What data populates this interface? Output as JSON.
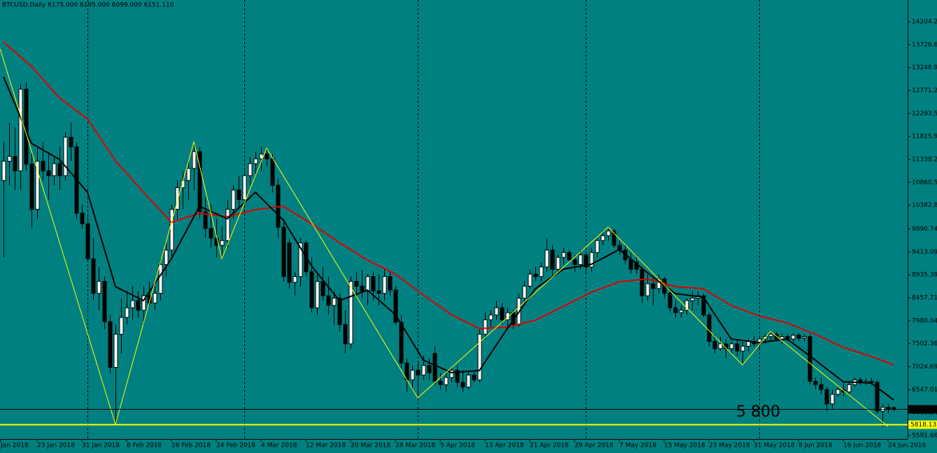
{
  "chart_data": {
    "type": "candlestick",
    "title": "BTCUSD,Daily  6175.000 6195.000 6099.000 6151.110",
    "background": "#008080",
    "xlim": [
      -0.625,
      161.5
    ],
    "ylim": [
      5519.5,
      14655
    ],
    "yticks": [
      14204.2,
      13726.6,
      13248.9,
      12771.2,
      12293.5,
      11815.9,
      11338.2,
      10860.5,
      10382.8,
      9890.74,
      9413.09,
      8935.39,
      8457.71,
      7980.04,
      7502.36,
      7024.69,
      6547.01,
      6069.34,
      5591.66
    ],
    "xticks": [
      {
        "value": -0.5,
        "label": "Jan 2018"
      },
      {
        "value": 6,
        "label": "23 Jan 2018"
      },
      {
        "value": 14,
        "label": "31 Jan 2018"
      },
      {
        "value": 22,
        "label": "8 Feb 2018"
      },
      {
        "value": 30,
        "label": "16 Feb 2018"
      },
      {
        "value": 38,
        "label": "24 Feb 2018"
      },
      {
        "value": 46,
        "label": "4 Mar 2018"
      },
      {
        "value": 54,
        "label": "12 Mar 2018"
      },
      {
        "value": 62,
        "label": "20 Mar 2018"
      },
      {
        "value": 70,
        "label": "28 Mar 2018"
      },
      {
        "value": 78,
        "label": "5 Apr 2018"
      },
      {
        "value": 86,
        "label": "13 Apr 2018"
      },
      {
        "value": 94,
        "label": "21 Apr 2018"
      },
      {
        "value": 102,
        "label": "29 Apr 2018"
      },
      {
        "value": 110,
        "label": "7 May 2018"
      },
      {
        "value": 118,
        "label": "15 May 2018"
      },
      {
        "value": 126,
        "label": "23 May 2018"
      },
      {
        "value": 134,
        "label": "31 May 2018"
      },
      {
        "value": 142,
        "label": "8 Jun 2018"
      },
      {
        "value": 150,
        "label": "16 Jun 2018"
      },
      {
        "value": 158,
        "label": "24 Jun 2018"
      }
    ],
    "separators": [
      15,
      43,
      74,
      104,
      135
    ],
    "bull_color": "#ffffff",
    "bear_color": "#000000",
    "ohlc": [
      [
        10900,
        11700,
        9300,
        11300
      ],
      [
        11300,
        12100,
        10800,
        11400
      ],
      [
        11400,
        12000,
        10700,
        11100
      ],
      [
        11100,
        12900,
        10700,
        12800
      ],
      [
        12800,
        12950,
        11100,
        11240
      ],
      [
        11240,
        11500,
        9900,
        10300
      ],
      [
        10300,
        11600,
        10100,
        11300
      ],
      [
        11300,
        11700,
        10900,
        11100
      ],
      [
        11100,
        11500,
        10500,
        11000
      ],
      [
        11000,
        11400,
        10800,
        11250
      ],
      [
        11250,
        11600,
        10700,
        11000
      ],
      [
        11000,
        11900,
        10900,
        11800
      ],
      [
        11800,
        12100,
        11300,
        11600
      ],
      [
        11600,
        11700,
        10100,
        10220
      ],
      [
        10220,
        10400,
        9900,
        10000
      ],
      [
        10000,
        10150,
        9200,
        9270
      ],
      [
        9270,
        9700,
        8400,
        8550
      ],
      [
        8550,
        9100,
        8200,
        8800
      ],
      [
        8800,
        8900,
        7800,
        7960
      ],
      [
        7960,
        8100,
        6900,
        7010
      ],
      [
        7010,
        7900,
        5824,
        7700
      ],
      [
        7700,
        8450,
        7300,
        8050
      ],
      [
        8050,
        8600,
        7900,
        8250
      ],
      [
        8250,
        8700,
        8000,
        8400
      ],
      [
        8400,
        8600,
        8050,
        8200
      ],
      [
        8200,
        8700,
        7900,
        8500
      ],
      [
        8500,
        8800,
        8300,
        8350
      ],
      [
        8350,
        8700,
        8200,
        8550
      ],
      [
        8550,
        9250,
        8400,
        9150
      ],
      [
        9150,
        9600,
        8900,
        9450
      ],
      [
        9450,
        10400,
        9300,
        10300
      ],
      [
        10300,
        10900,
        10100,
        10750
      ],
      [
        10750,
        11100,
        10300,
        10900
      ],
      [
        10900,
        11300,
        10500,
        11150
      ],
      [
        11150,
        11700,
        10700,
        11500
      ],
      [
        11500,
        11600,
        10100,
        10250
      ],
      [
        10250,
        10550,
        9700,
        9900
      ],
      [
        9900,
        10400,
        9500,
        9700
      ],
      [
        9700,
        10100,
        9300,
        9550
      ],
      [
        9550,
        9950,
        9273,
        9650
      ],
      [
        9650,
        10500,
        9500,
        10300
      ],
      [
        10300,
        10800,
        10100,
        10700
      ],
      [
        10700,
        11000,
        10300,
        10500
      ],
      [
        10500,
        11100,
        10400,
        11000
      ],
      [
        11000,
        11400,
        10800,
        11250
      ],
      [
        11250,
        11500,
        11000,
        11350
      ],
      [
        11350,
        11600,
        11100,
        11450
      ],
      [
        11450,
        11571,
        11200,
        11350
      ],
      [
        11350,
        11450,
        10650,
        10800
      ],
      [
        10800,
        10950,
        9700,
        9927
      ],
      [
        9927,
        10100,
        8800,
        8900
      ],
      [
        9600,
        9700,
        8650,
        8780
      ],
      [
        8780,
        9000,
        8500,
        8900
      ],
      [
        8900,
        9700,
        8700,
        9600
      ],
      [
        9600,
        9650,
        8900,
        9000
      ],
      [
        9000,
        9300,
        8150,
        8250
      ],
      [
        8250,
        9000,
        8100,
        8800
      ],
      [
        8800,
        9100,
        8400,
        8500
      ],
      [
        8500,
        8900,
        8100,
        8300
      ],
      [
        8300,
        8600,
        7900,
        8450
      ],
      [
        8450,
        8550,
        7750,
        7900
      ],
      [
        7900,
        8200,
        7300,
        7500
      ],
      [
        7500,
        8900,
        7400,
        8800
      ],
      [
        8800,
        9000,
        8500,
        8700
      ],
      [
        8700,
        9050,
        8450,
        8600
      ],
      [
        8600,
        8950,
        8300,
        8900
      ],
      [
        8900,
        9000,
        8400,
        8600
      ],
      [
        8600,
        8950,
        8300,
        8550
      ],
      [
        8550,
        9050,
        8400,
        8900
      ],
      [
        8900,
        9000,
        8500,
        8620
      ],
      [
        8620,
        8700,
        7900,
        7950
      ],
      [
        7950,
        8100,
        7000,
        7100
      ],
      [
        7100,
        7200,
        6500,
        6750
      ],
      [
        6750,
        7050,
        6550,
        6950
      ],
      [
        6950,
        7100,
        6430,
        6850
      ],
      [
        6850,
        7250,
        6750,
        7050
      ],
      [
        7050,
        7200,
        6750,
        6900
      ],
      [
        7300,
        7450,
        6650,
        6720
      ],
      [
        6720,
        6900,
        6550,
        6650
      ],
      [
        6650,
        6900,
        6500,
        6800
      ],
      [
        6800,
        7000,
        6700,
        6950
      ],
      [
        6950,
        7050,
        6600,
        6700
      ],
      [
        6700,
        6950,
        6500,
        6600
      ],
      [
        6600,
        6950,
        6550,
        6850
      ],
      [
        6850,
        6950,
        6700,
        6750
      ],
      [
        6750,
        7800,
        6700,
        7700
      ],
      [
        7700,
        8150,
        7600,
        8000
      ],
      [
        8000,
        8200,
        7850,
        8100
      ],
      [
        8100,
        8400,
        8000,
        8250
      ],
      [
        8250,
        8350,
        7900,
        8000
      ],
      [
        8000,
        8250,
        7850,
        8150
      ],
      [
        8150,
        8200,
        7800,
        7900
      ],
      [
        7900,
        8550,
        7850,
        8450
      ],
      [
        8450,
        8800,
        8300,
        8700
      ],
      [
        8700,
        9050,
        8650,
        8950
      ],
      [
        8950,
        9100,
        8800,
        8900
      ],
      [
        8900,
        9200,
        8800,
        9100
      ],
      [
        9100,
        9700,
        9000,
        9450
      ],
      [
        9450,
        9550,
        8900,
        9050
      ],
      [
        9050,
        9350,
        8950,
        9300
      ],
      [
        9300,
        9500,
        9150,
        9400
      ],
      [
        9400,
        9450,
        9200,
        9250
      ],
      [
        9250,
        9350,
        9000,
        9150
      ],
      [
        9150,
        9450,
        9050,
        9350
      ],
      [
        9350,
        9400,
        8950,
        9100
      ],
      [
        9100,
        9500,
        9000,
        9400
      ],
      [
        9400,
        9700,
        9300,
        9650
      ],
      [
        9650,
        9850,
        9550,
        9750
      ],
      [
        9750,
        9927,
        9650,
        9850
      ],
      [
        9850,
        9900,
        9500,
        9550
      ],
      [
        9550,
        9650,
        9350,
        9450
      ],
      [
        9450,
        9550,
        9150,
        9250
      ],
      [
        9250,
        9400,
        8950,
        9050
      ],
      [
        9200,
        9350,
        8950,
        9050
      ],
      [
        9050,
        9100,
        8350,
        8500
      ],
      [
        8500,
        8950,
        8400,
        8750
      ],
      [
        8750,
        8900,
        8300,
        8650
      ],
      [
        8650,
        8950,
        8550,
        8850
      ],
      [
        8850,
        8900,
        8450,
        8550
      ],
      [
        8550,
        8650,
        8150,
        8250
      ],
      [
        8250,
        8400,
        8050,
        8150
      ],
      [
        8150,
        8300,
        8050,
        8200
      ],
      [
        8200,
        8450,
        8100,
        8400
      ],
      [
        8400,
        8600,
        8200,
        8450
      ],
      [
        8450,
        8600,
        8300,
        8500
      ],
      [
        8500,
        8550,
        8050,
        8100
      ],
      [
        8100,
        8150,
        7450,
        7550
      ],
      [
        7550,
        7700,
        7300,
        7400
      ],
      [
        7400,
        7650,
        7350,
        7500
      ],
      [
        7500,
        7600,
        7200,
        7400
      ],
      [
        7400,
        7550,
        7300,
        7500
      ],
      [
        7500,
        7600,
        7250,
        7350
      ],
      [
        7350,
        7550,
        7061,
        7450
      ],
      [
        7450,
        7600,
        7350,
        7550
      ],
      [
        7550,
        7650,
        7450,
        7500
      ],
      [
        7500,
        7650,
        7400,
        7600
      ],
      [
        7600,
        7700,
        7500,
        7650
      ],
      [
        7650,
        7759,
        7550,
        7700
      ],
      [
        7700,
        7750,
        7550,
        7600
      ],
      [
        7600,
        7720,
        7500,
        7650
      ],
      [
        7650,
        7700,
        7550,
        7600
      ],
      [
        7600,
        7720,
        7550,
        7680
      ],
      [
        7680,
        7730,
        7550,
        7620
      ],
      [
        7620,
        7700,
        7550,
        7650
      ],
      [
        7650,
        7700,
        6650,
        6720
      ],
      [
        6720,
        6800,
        6550,
        6650
      ],
      [
        6650,
        6800,
        6450,
        6550
      ],
      [
        6550,
        6600,
        6100,
        6250
      ],
      [
        6250,
        6550,
        6150,
        6450
      ],
      [
        6450,
        6600,
        6400,
        6550
      ],
      [
        6550,
        6700,
        6400,
        6500
      ],
      [
        6500,
        6700,
        6450,
        6650
      ],
      [
        6650,
        6800,
        6600,
        6750
      ],
      [
        6750,
        6800,
        6650,
        6700
      ],
      [
        6700,
        6780,
        6650,
        6720
      ],
      [
        6720,
        6800,
        6650,
        6700
      ],
      [
        6700,
        6750,
        6050,
        6100
      ],
      [
        6100,
        6250,
        5781,
        6180
      ],
      [
        6180,
        6250,
        6050,
        6150
      ],
      [
        6175,
        6195,
        6099,
        6151.11
      ]
    ],
    "series": [
      {
        "color": "#e00000",
        "width": 2,
        "x": [
          0,
          5,
          10,
          15,
          20,
          25,
          30,
          35,
          40,
          45,
          50,
          55,
          60,
          65,
          70,
          75,
          80,
          85,
          90,
          95,
          100,
          105,
          110,
          115,
          120,
          125,
          130,
          135,
          140,
          145,
          150,
          155,
          159
        ],
        "values": [
          13782,
          13273,
          12618,
          12182,
          11309,
          10655,
          10029,
          10218,
          10145,
          10291,
          10364,
          10000,
          9607,
          9244,
          8953,
          8516,
          8109,
          7818,
          7847,
          7992,
          8283,
          8574,
          8793,
          8851,
          8691,
          8647,
          8298,
          8080,
          7934,
          7702,
          7425,
          7236,
          7061
        ]
      },
      {
        "color": "#000000",
        "width": 2,
        "x": [
          0,
          5,
          10,
          15,
          20,
          25,
          30,
          35,
          40,
          45,
          50,
          55,
          60,
          65,
          70,
          75,
          80,
          85,
          90,
          95,
          100,
          105,
          110,
          115,
          120,
          125,
          130,
          135,
          140,
          145,
          150,
          155,
          159
        ],
        "values": [
          13055,
          11673,
          11338,
          10655,
          8691,
          8400,
          9273,
          10364,
          10102,
          10655,
          10073,
          9127,
          8400,
          8618,
          8109,
          7163,
          6901,
          6945,
          7818,
          8647,
          9055,
          9156,
          9462,
          8982,
          8545,
          8473,
          7600,
          7527,
          7600,
          7163,
          6712,
          6683,
          6334
        ]
      },
      {
        "color": "#ffff00",
        "width": 1,
        "x": [
          -0.6,
          20,
          34,
          39,
          47,
          74,
          108,
          132,
          137,
          158
        ],
        "values": [
          13637,
          5824,
          11702,
          9272,
          11571,
          6377,
          9927,
          7061,
          7759,
          5781
        ]
      }
    ],
    "levels": [
      {
        "value": 6151.11,
        "color": "#000000",
        "text_color": "#ffffff"
      },
      {
        "value": 5818.13,
        "color": "#ffff00",
        "text_color": "#000000"
      }
    ],
    "annotation": {
      "text": "5 800",
      "color": "#ffff00"
    }
  }
}
